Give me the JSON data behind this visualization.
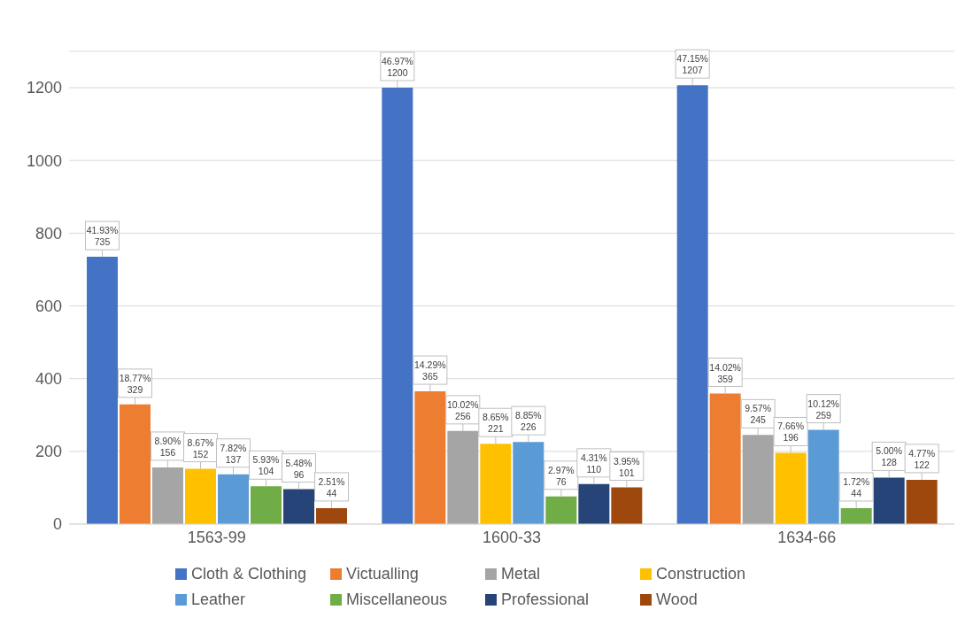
{
  "chart_data": {
    "type": "bar",
    "categories": [
      "1563-99",
      "1600-33",
      "1634-66"
    ],
    "series": [
      {
        "name": "Cloth & Clothing",
        "color": "#4472c4",
        "values": [
          735,
          1200,
          1207
        ],
        "value_labels": [
          "41.93%\n735",
          "46.97%\n1200",
          "47.15%\n1207"
        ]
      },
      {
        "name": "Victualling",
        "color": "#ed7d31",
        "values": [
          329,
          365,
          359
        ],
        "value_labels": [
          "18.77%\n329",
          "14.29%\n365",
          "14.02%\n359"
        ]
      },
      {
        "name": "Metal",
        "color": "#a5a5a5",
        "values": [
          156,
          256,
          245
        ],
        "value_labels": [
          "8.90%\n156",
          "10.02%\n256",
          "9.57%\n245"
        ]
      },
      {
        "name": "Construction",
        "color": "#ffc000",
        "values": [
          152,
          221,
          196
        ],
        "value_labels": [
          "8.67%\n152",
          "8.65%\n221",
          "7.66%\n196"
        ]
      },
      {
        "name": "Leather",
        "color": "#5b9bd5",
        "values": [
          137,
          226,
          259
        ],
        "value_labels": [
          "7.82%\n137",
          "8.85%\n226",
          "10.12%\n259"
        ]
      },
      {
        "name": "Miscellaneous",
        "color": "#70ad47",
        "values": [
          104,
          76,
          44
        ],
        "value_labels": [
          "5.93%\n104",
          "2.97%\n76",
          "1.72%\n44"
        ]
      },
      {
        "name": "Professional",
        "color": "#264478",
        "values": [
          96,
          110,
          128
        ],
        "value_labels": [
          "5.48%\n96",
          "4.31%\n110",
          "5.00%\n128"
        ]
      },
      {
        "name": "Wood",
        "color": "#9e480e",
        "values": [
          44,
          101,
          122
        ],
        "value_labels": [
          "2.51%\n44",
          "3.95%\n101",
          "4.77%\n122"
        ]
      }
    ],
    "ylim": [
      0,
      1300
    ],
    "yticks": [
      0,
      200,
      400,
      600,
      800,
      1000,
      1200
    ],
    "grid": "y",
    "legend": "bottom"
  }
}
